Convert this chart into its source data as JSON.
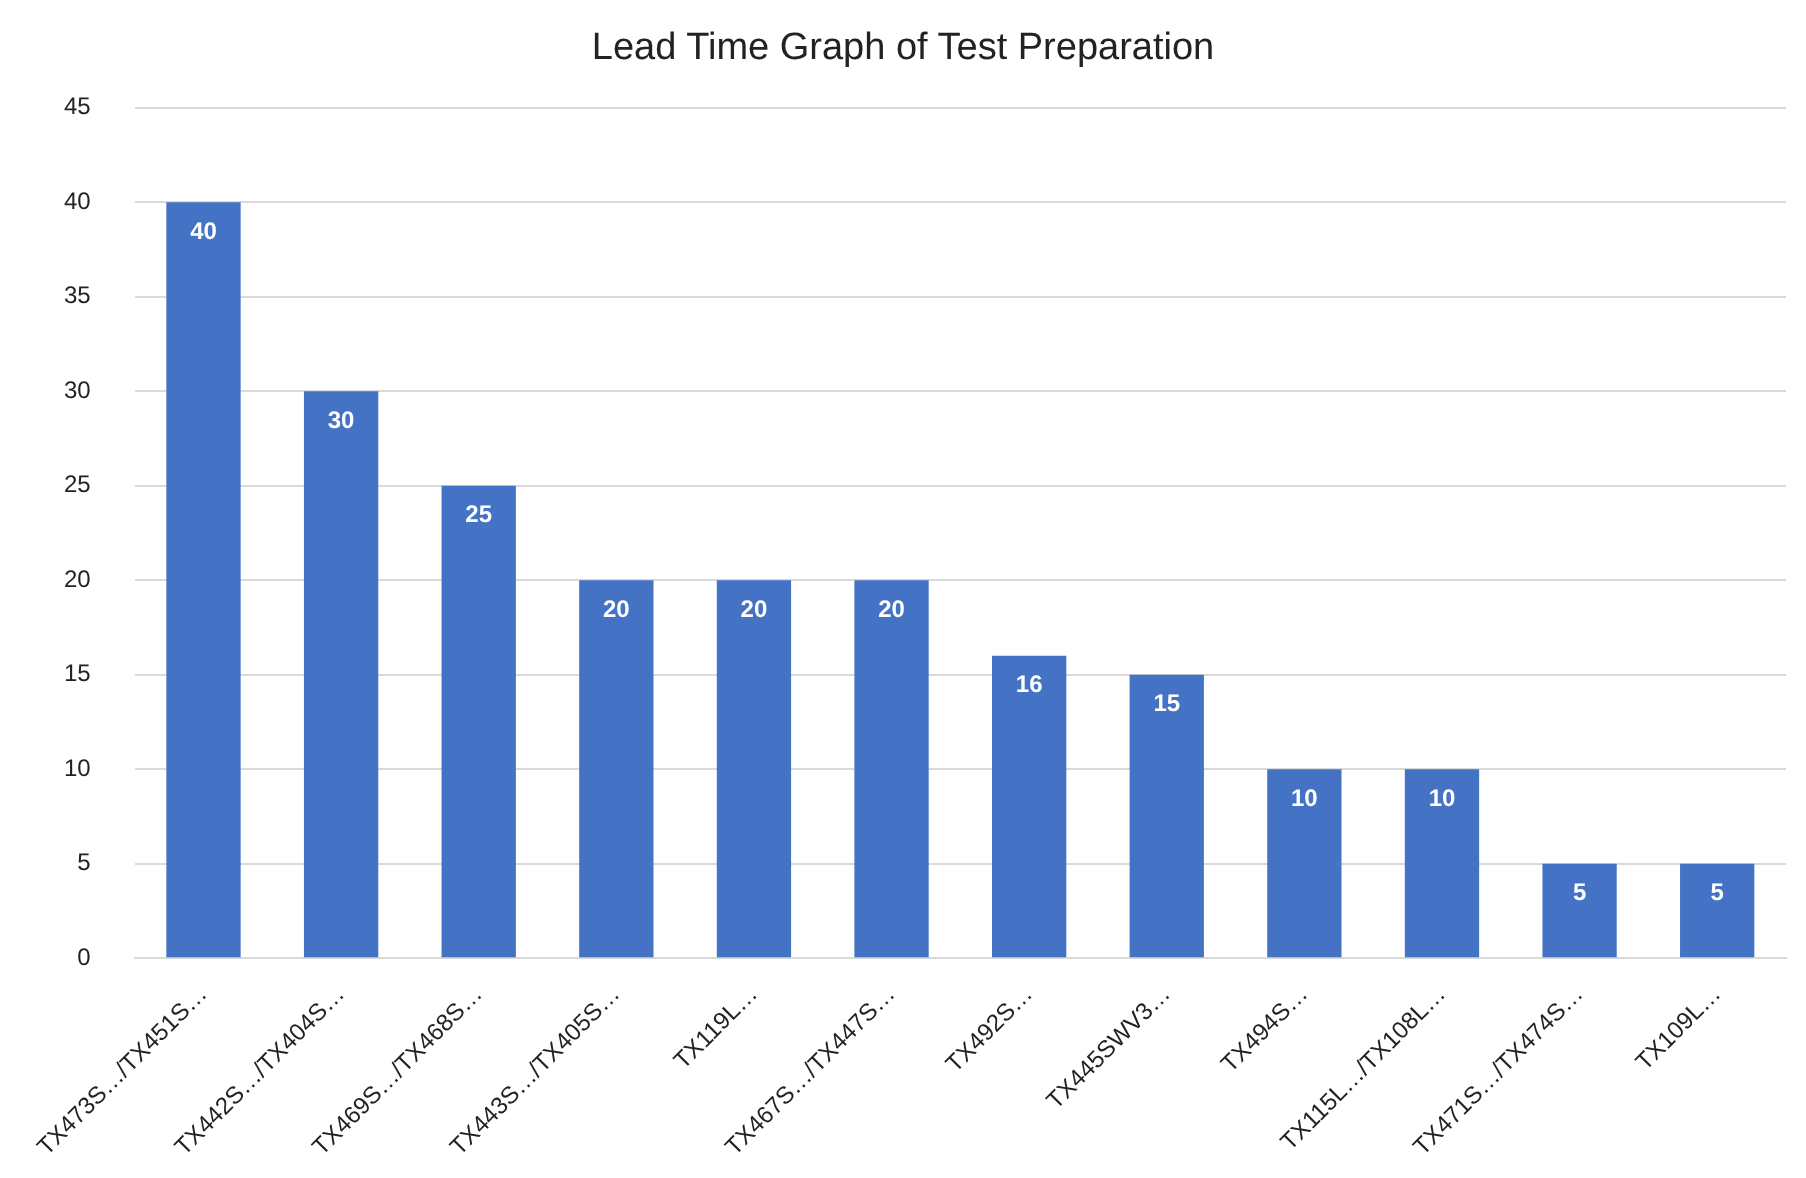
{
  "chart_data": {
    "type": "bar",
    "title": "Lead Time Graph of Test Preparation",
    "categories": [
      "TX473S…/TX451S…",
      "TX442S…/TX404S…",
      "TX469S…/TX468S…",
      "TX443S…/TX405S…",
      "TX119L…",
      "TX467S…/TX447S…",
      "TX492S…",
      "TX445SWV3…",
      "TX494S…",
      "TX115L…/TX108L…",
      "TX471S…/TX474S…",
      "TX109L…"
    ],
    "values": [
      40,
      30,
      25,
      20,
      20,
      20,
      16,
      15,
      10,
      10,
      5,
      5
    ],
    "color": "#4472c4",
    "ylim": [
      0,
      45
    ],
    "yticks": [
      0,
      5,
      10,
      15,
      20,
      25,
      30,
      35,
      40,
      45
    ],
    "grid": "y",
    "data_labels": true
  }
}
